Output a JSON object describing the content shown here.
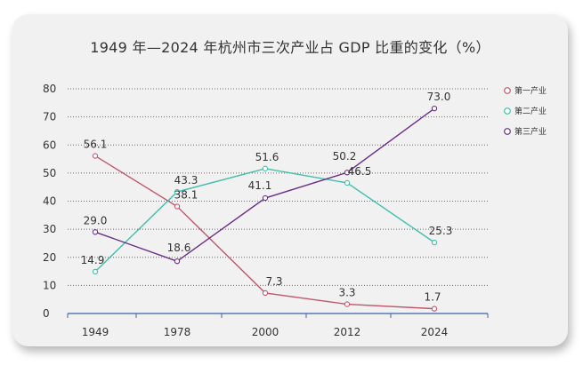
{
  "chart_data": {
    "type": "line",
    "title": "1949 年—2024 年杭州市三次产业占 GDP 比重的变化（%）",
    "categories": [
      "1949",
      "1978",
      "2000",
      "2012",
      "2024"
    ],
    "ylim": [
      0,
      80
    ],
    "yticks": [
      0,
      10,
      20,
      30,
      40,
      50,
      60,
      70,
      80
    ],
    "xlabel": "",
    "ylabel": "",
    "grid": "dotted horizontal",
    "legend": "top-right",
    "series": [
      {
        "name": "第一产业",
        "color": "#c1576b",
        "values": [
          56.1,
          38.1,
          7.3,
          3.3,
          1.7
        ],
        "labels": [
          "56.1",
          "38.1",
          "7.3",
          "3.3",
          "1.7"
        ]
      },
      {
        "name": "第二产业",
        "color": "#3fbfaa",
        "values": [
          14.9,
          43.3,
          51.6,
          46.5,
          25.3
        ],
        "labels": [
          "14.9",
          "43.3",
          "51.6",
          "46.5",
          "25.3"
        ]
      },
      {
        "name": "第三产业",
        "color": "#6a2f87",
        "values": [
          29.0,
          18.6,
          41.1,
          50.2,
          73.0
        ],
        "labels": [
          "29.0",
          "18.6",
          "41.1",
          "50.2",
          "73.0"
        ]
      }
    ]
  }
}
